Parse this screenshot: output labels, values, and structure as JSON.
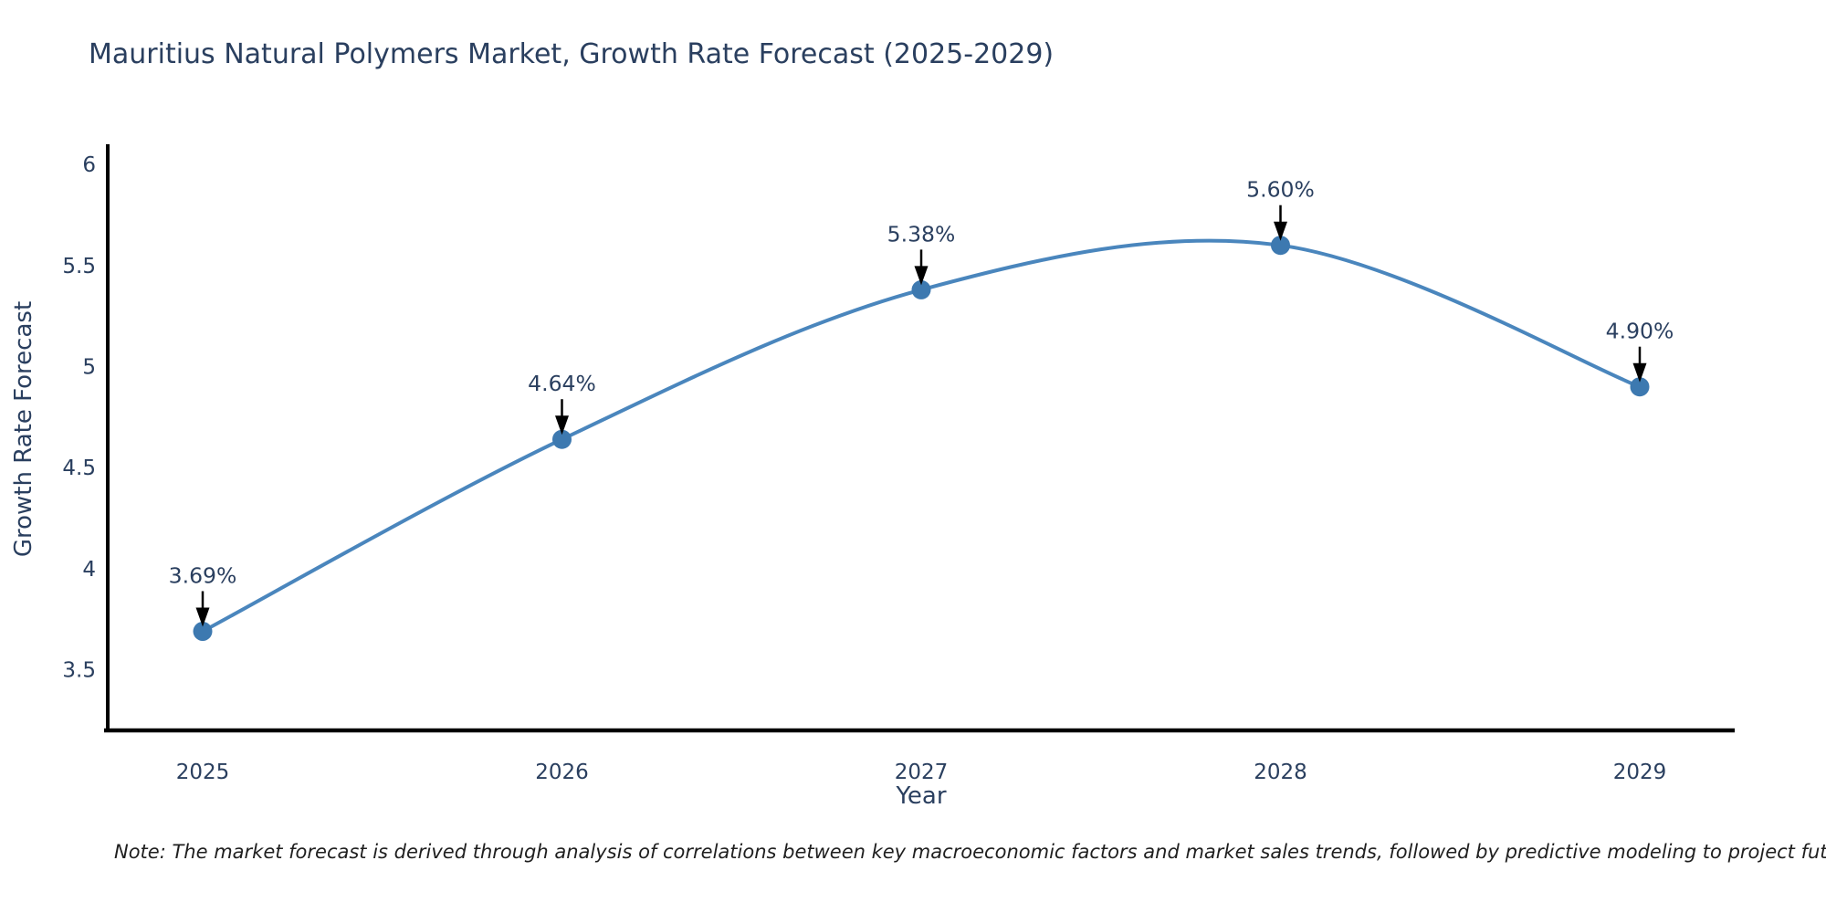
{
  "note": "Note: The market forecast is derived through analysis of correlations between key macroeconomic factors and market sales trends, followed by predictive modeling to project future sales",
  "chart_data": {
    "type": "line",
    "title": "Mauritius Natural Polymers Market, Growth Rate Forecast (2025-2029)",
    "x": [
      "2025",
      "2026",
      "2027",
      "2028",
      "2029"
    ],
    "series": [
      {
        "name": "Growth Rate Forecast",
        "values": [
          3.69,
          4.64,
          5.38,
          5.6,
          4.9
        ]
      }
    ],
    "point_labels": [
      "3.69%",
      "4.64%",
      "5.38%",
      "5.60%",
      "4.90%"
    ],
    "xlabel": "Year",
    "ylabel": "Growth Rate Forecast",
    "ylim": [
      3.2,
      6.1
    ],
    "yticks": [
      "3.5",
      "4",
      "4.5",
      "5",
      "5.5",
      "6"
    ],
    "grid": false,
    "legend": "none",
    "line_shape": "spline",
    "annotations": "value labels with downward arrows to each point"
  },
  "colors": {
    "line": "#4a86bd",
    "marker": "#3d79b0",
    "axis": "#000000",
    "arrow": "#000000",
    "text": "#2a3f5f",
    "note_text": "#1f1f1f",
    "background": "#ffffff"
  }
}
